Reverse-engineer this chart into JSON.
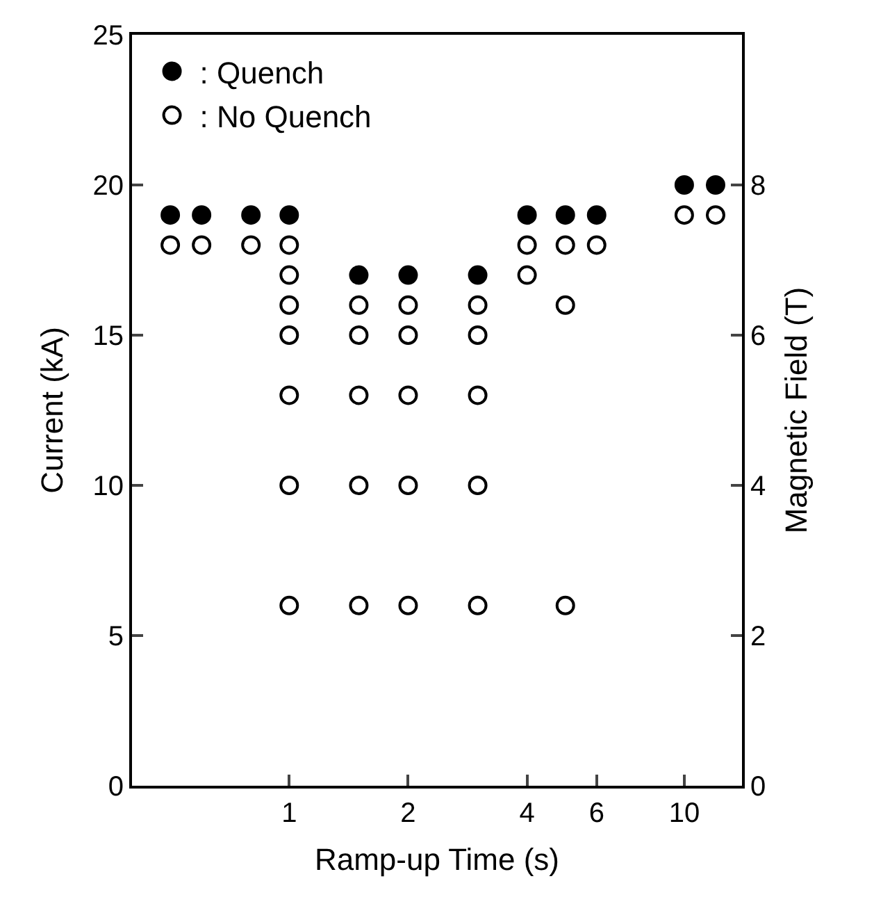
{
  "chart_data": {
    "type": "scatter",
    "xlabel": "Ramp-up Time (s)",
    "ylabel": "Current (kA)",
    "y2label": "Magnetic Field (T)",
    "log": "x",
    "xlim": [
      0.4,
      14
    ],
    "xticks": [
      1,
      2,
      4,
      6,
      10
    ],
    "ylim": [
      0,
      25
    ],
    "yticks": [
      0,
      5,
      10,
      15,
      20,
      25
    ],
    "y2lim": [
      0,
      10
    ],
    "y2ticks": [
      0,
      2,
      4,
      6,
      8
    ],
    "legend": "top left",
    "marker": "circle",
    "series": [
      {
        "name": ": Quench",
        "color": "#000000",
        "x": [
          0.5,
          0.6,
          0.8,
          1,
          1.5,
          2,
          3,
          4,
          5,
          6,
          10,
          12
        ],
        "values": [
          19,
          19,
          19,
          19,
          17,
          17,
          17,
          19,
          19,
          19,
          20,
          20
        ]
      },
      {
        "name": ": No Quench",
        "color": "#ffffff",
        "x": [
          0.5,
          0.6,
          0.8,
          1,
          1,
          1,
          1,
          1,
          1,
          1,
          1.5,
          1.5,
          1.5,
          1.5,
          1.5,
          2,
          2,
          2,
          2,
          2,
          3,
          3,
          3,
          3,
          3,
          4,
          4,
          5,
          5,
          5,
          6,
          10,
          12
        ],
        "values": [
          18,
          18,
          18,
          18,
          17,
          16,
          15,
          13,
          10,
          6,
          16,
          15,
          13,
          10,
          6,
          16,
          15,
          13,
          10,
          6,
          16,
          15,
          13,
          10,
          6,
          18,
          17,
          18,
          16,
          6,
          18,
          19,
          19
        ]
      }
    ]
  }
}
